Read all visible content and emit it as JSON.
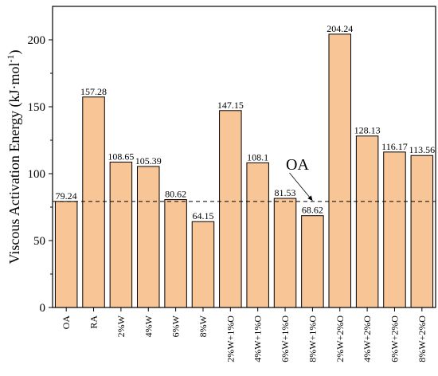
{
  "chart_data": {
    "type": "bar",
    "title": "",
    "xlabel": "",
    "ylabel": "Viscous Activation Energy (kJ·mol",
    "ylabel_superscript": "-1",
    "ylabel_close": ")",
    "ylim": [
      0,
      225
    ],
    "yticks": [
      0,
      50,
      100,
      150,
      200
    ],
    "categories": [
      "OA",
      "RA",
      "2%W",
      "4%W",
      "6%W",
      "8%W",
      "2%W+1%O",
      "4%W+1%O",
      "6%W+1%O",
      "8%W+1%O",
      "2%W+2%O",
      "4%W+2%O",
      "6%W+2%O",
      "8%W+2%O"
    ],
    "values": [
      79.24,
      157.28,
      108.65,
      105.39,
      80.62,
      64.15,
      147.15,
      108.1,
      81.53,
      68.62,
      204.24,
      128.13,
      116.17,
      113.56
    ],
    "value_labels": [
      "79.24",
      "157.28",
      "108.65",
      "105.39",
      "80.62",
      "64.15",
      "147.15",
      "108.1",
      "81.53",
      "68.62",
      "204.24",
      "128.13",
      "116.17",
      "113.56"
    ],
    "bar_color": "#F8C597",
    "reference_line": {
      "value": 79.24,
      "label": "OA",
      "style": "dashed"
    },
    "grid": false,
    "legend": "none"
  }
}
